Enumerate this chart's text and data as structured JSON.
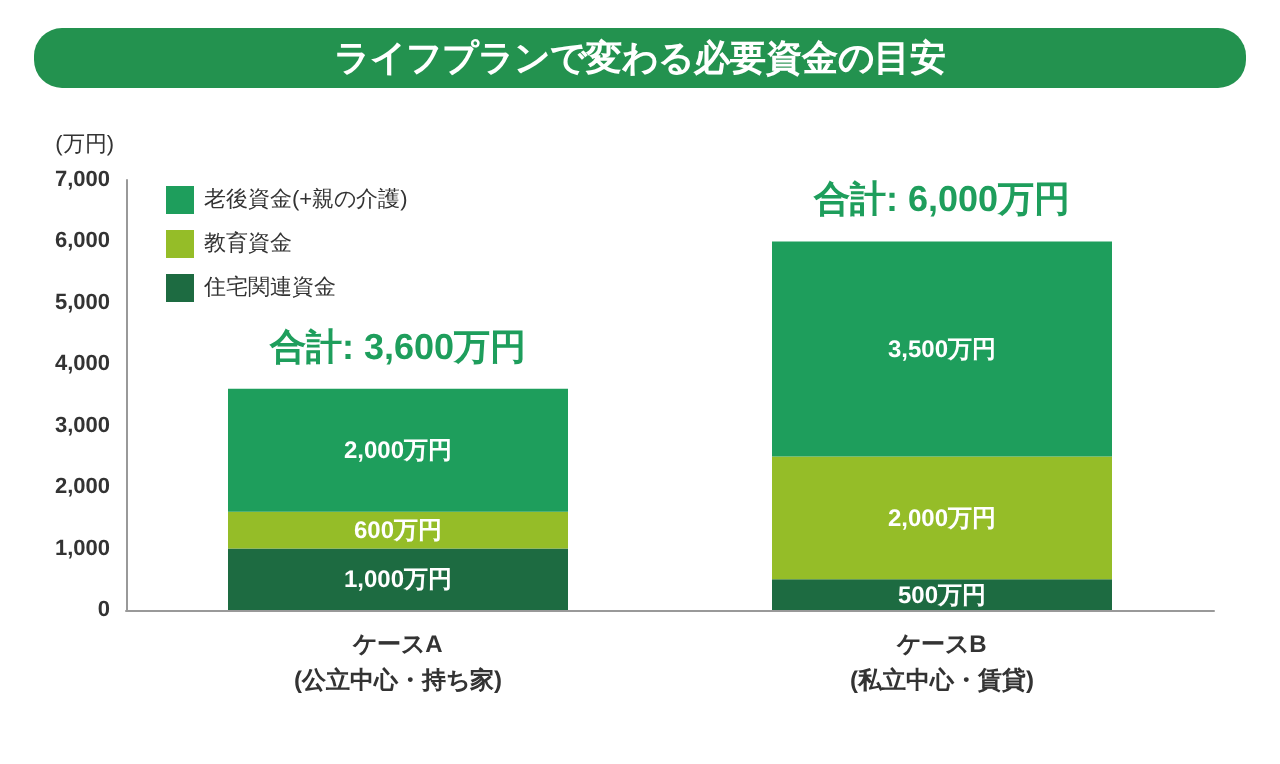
{
  "chart_data": {
    "type": "bar",
    "title": "ライフプランで変わる必要資金の目安",
    "ylabel": "(万円)",
    "stacked": true,
    "categories": [
      "ケースA\n(公立中心・持ち家)",
      "ケースB\n(私立中心・賃貸)"
    ],
    "series": [
      {
        "name": "住宅関連資金",
        "color": "#1d6b41",
        "values": [
          1000,
          500
        ],
        "value_labels": [
          "1,000万円",
          "500万円"
        ]
      },
      {
        "name": "教育資金",
        "color": "#95bd28",
        "values": [
          600,
          2000
        ],
        "value_labels": [
          "600万円",
          "2,000万円"
        ]
      },
      {
        "name": "老後資金(+親の介護)",
        "color": "#1e9e5c",
        "values": [
          2000,
          3500
        ],
        "value_labels": [
          "2,000万円",
          "3,500万円"
        ]
      }
    ],
    "totals": [
      "合計: 3,600万円",
      "合計: 6,000万円"
    ],
    "ylim": [
      0,
      7000
    ],
    "yticks": [
      0,
      {
        "value": 1000,
        "label": "1,000"
      },
      {
        "value": 2000,
        "label": "2,000"
      },
      {
        "value": 3000,
        "label": "3,000"
      },
      {
        "value": 4000,
        "label": "4,000"
      },
      {
        "value": 5000,
        "label": "5,000"
      },
      {
        "value": 6000,
        "label": "6,000"
      },
      {
        "value": 7000,
        "label": "7,000"
      }
    ],
    "grid": false,
    "legend": "top left"
  }
}
